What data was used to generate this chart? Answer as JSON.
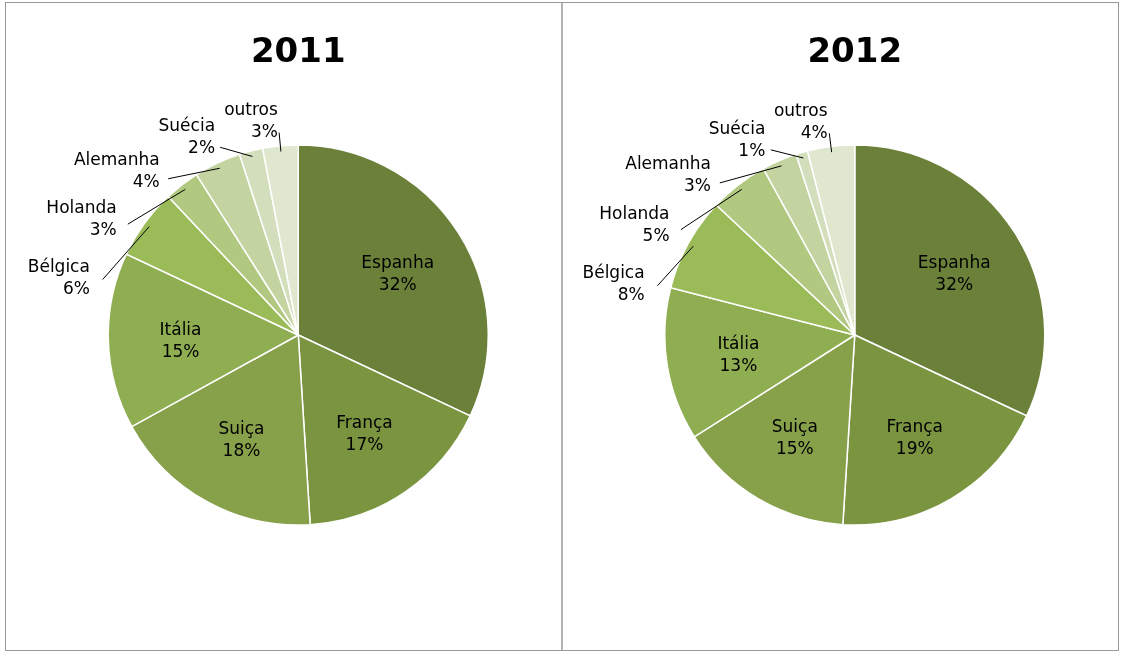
{
  "chart_data": [
    {
      "type": "pie",
      "title": "2011",
      "categories": [
        "Espanha",
        "França",
        "Suiça",
        "Itália",
        "Bélgica",
        "Holanda",
        "Alemanha",
        "Suécia",
        "outros"
      ],
      "values": [
        32,
        17,
        18,
        15,
        6,
        3,
        4,
        2,
        3
      ],
      "value_labels": [
        "32%",
        "17%",
        "18%",
        "15%",
        "6%",
        "3%",
        "4%",
        "2%",
        "3%"
      ],
      "colors": [
        "#6b8139",
        "#7a9440",
        "#87a04a",
        "#8fae52",
        "#9bbb59",
        "#b0c87f",
        "#c3d4a0",
        "#d3dfbc",
        "#dfe7cf"
      ]
    },
    {
      "type": "pie",
      "title": "2012",
      "categories": [
        "Espanha",
        "França",
        "Suiça",
        "Itália",
        "Bélgica",
        "Holanda",
        "Alemanha",
        "Suécia",
        "outros"
      ],
      "values": [
        32,
        19,
        15,
        13,
        8,
        5,
        3,
        1,
        4
      ],
      "value_labels": [
        "32%",
        "19%",
        "15%",
        "13%",
        "8%",
        "5%",
        "3%",
        "1%",
        "4%"
      ],
      "colors": [
        "#6b8139",
        "#7a9440",
        "#87a04a",
        "#8fae52",
        "#9bbb59",
        "#b0c87f",
        "#c3d4a0",
        "#d3dfbc",
        "#dfe7cf"
      ]
    }
  ]
}
